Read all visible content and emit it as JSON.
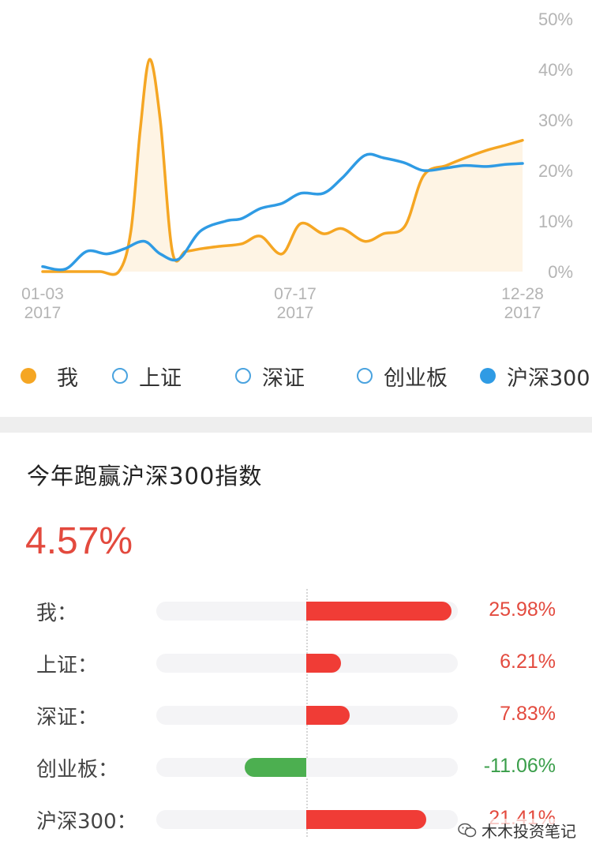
{
  "chart_data": {
    "type": "line",
    "x_ticks": [
      {
        "date": "01-03",
        "year": "2017"
      },
      {
        "date": "07-17",
        "year": "2017"
      },
      {
        "date": "12-28",
        "year": "2017"
      }
    ],
    "x_range": [
      "2017-01-03",
      "2017-12-28"
    ],
    "y_ticks": [
      "0%",
      "10%",
      "20%",
      "30%",
      "40%",
      "50%"
    ],
    "ylim": [
      0,
      50
    ],
    "y_unit": "%",
    "grid": false,
    "legend_position": "bottom",
    "series": [
      {
        "name": "我",
        "color": "#f5a623",
        "fill": true,
        "x": [
          "2017-01-03",
          "2017-01-17",
          "2017-02-01",
          "2017-02-15",
          "2017-03-01",
          "2017-03-10",
          "2017-03-17",
          "2017-03-24",
          "2017-04-01",
          "2017-04-10",
          "2017-04-20",
          "2017-05-01",
          "2017-05-15",
          "2017-06-01",
          "2017-06-15",
          "2017-07-01",
          "2017-07-15",
          "2017-08-01",
          "2017-08-15",
          "2017-09-01",
          "2017-09-15",
          "2017-10-01",
          "2017-10-15",
          "2017-11-01",
          "2017-11-15",
          "2017-12-01",
          "2017-12-15",
          "2017-12-28"
        ],
        "values": [
          0,
          0,
          0,
          0,
          0,
          8,
          28,
          42,
          30,
          4,
          4,
          4.5,
          5,
          5.5,
          7,
          3.5,
          9.5,
          7.5,
          8.5,
          6,
          7.5,
          9,
          19,
          21,
          22.5,
          24,
          25,
          25.98
        ]
      },
      {
        "name": "上证",
        "color": "#4aa3df",
        "hollow": true,
        "values": []
      },
      {
        "name": "深证",
        "color": "#4aa3df",
        "hollow": true,
        "values": []
      },
      {
        "name": "创业板",
        "color": "#4aa3df",
        "hollow": true,
        "values": []
      },
      {
        "name": "沪深300",
        "color": "#2f9be4",
        "x": [
          "2017-01-03",
          "2017-01-20",
          "2017-02-05",
          "2017-02-20",
          "2017-03-05",
          "2017-03-20",
          "2017-04-01",
          "2017-04-15",
          "2017-05-01",
          "2017-05-20",
          "2017-06-01",
          "2017-06-15",
          "2017-07-01",
          "2017-07-15",
          "2017-08-01",
          "2017-08-15",
          "2017-09-01",
          "2017-09-15",
          "2017-10-01",
          "2017-10-15",
          "2017-11-01",
          "2017-11-15",
          "2017-12-01",
          "2017-12-15",
          "2017-12-28"
        ],
        "values": [
          1,
          0.5,
          4,
          3.5,
          4.5,
          6,
          3.5,
          2.5,
          8,
          10,
          10.5,
          12.5,
          13.5,
          15.5,
          15.5,
          18.5,
          23,
          22.5,
          21.5,
          20,
          20.5,
          21,
          20.8,
          21.2,
          21.41
        ]
      }
    ]
  },
  "summary": {
    "title": "今年跑赢沪深300指数",
    "value": "4.57%",
    "scale_max": 26,
    "bars": [
      {
        "label": "我：",
        "value": 25.98,
        "display": "25.98%"
      },
      {
        "label": "上证：",
        "value": 6.21,
        "display": "6.21%"
      },
      {
        "label": "深证：",
        "value": 7.83,
        "display": "7.83%"
      },
      {
        "label": "创业板：",
        "value": -11.06,
        "display": "-11.06%"
      },
      {
        "label": "沪深300：",
        "value": 21.41,
        "display": "21.41%"
      }
    ],
    "positive_color": "#f03c36",
    "negative_color": "#4caf50",
    "positive_text_color": "#e34a3e",
    "negative_text_color": "#3a9e4a"
  },
  "watermark": {
    "text": "木木投资笔记",
    "icon": "wechat-icon"
  }
}
